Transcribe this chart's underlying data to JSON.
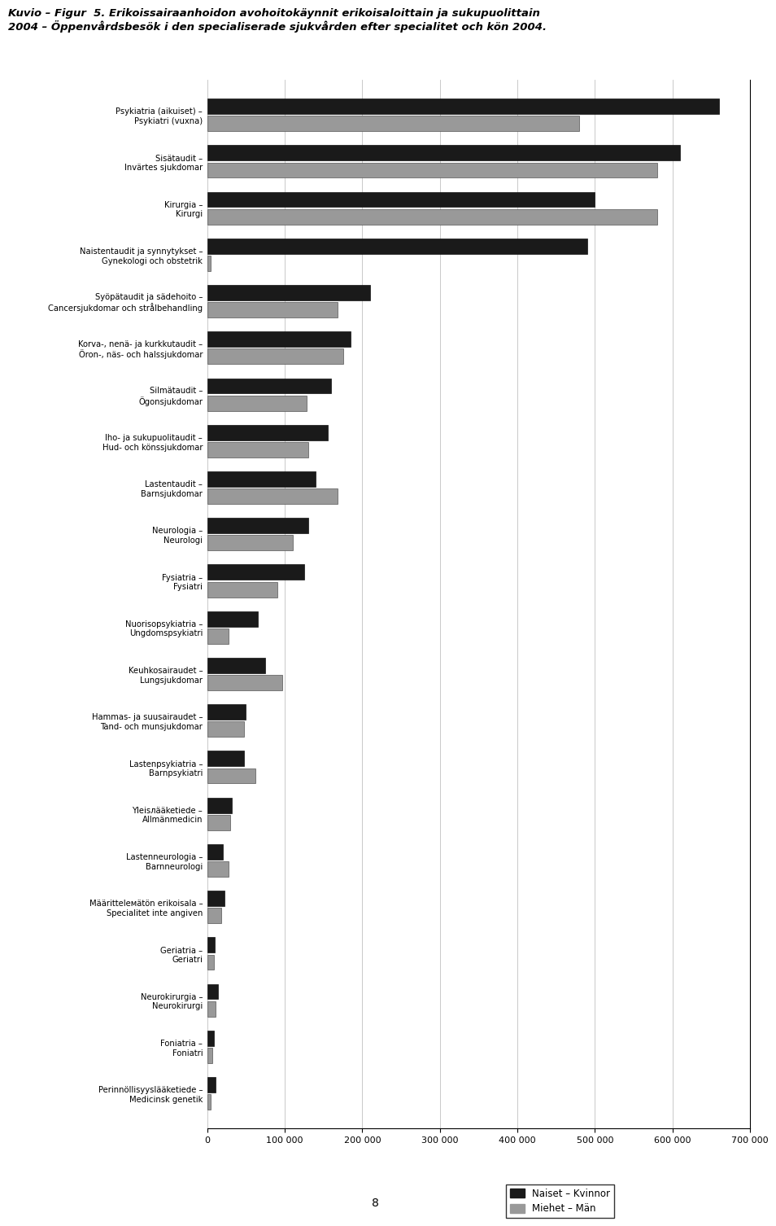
{
  "categories": [
    "Psykiatria (aikuiset) –\nPsykiatri (vuxna)",
    "Sisätaudit –\nInvärtes sjukdomar",
    "Kirurgia –\nKirurgi",
    "Naistentaudit ja synnytykset –\nGynekologi och obstetrik",
    "Syöpätaudit ja sädehoito –\nCancersjukdomar och strålbehandling",
    "Korva-, nenä- ja kurkkutaudit –\nÖron-, näs- och halssjukdomar",
    "Silmätaudit –\nÖgonsjukdomar",
    "Iho- ja sukupuolitaudit –\nHud- och könssjukdomar",
    "Lastentaudit –\nBarnsjukdomar",
    "Neurologia –\nNeurologi",
    "Fysiatria –\nFysiatri",
    "Nuorisopsykiatria –\nUngdomspsykiatri",
    "Keuhkosairaudet –\nLungsjukdomar",
    "Hammas- ja suusairaudet –\nTand- och munsjukdomar",
    "Lastenpsykiatria –\nBarnpsykiatri",
    "Yleisлääketiede –\nAllmänmedicin",
    "Lastenneurologia –\nBarnneurologi",
    "Määrittelемätön erikoisala –\nSpecialitet inte angiven",
    "Geriatria –\nGeriatri",
    "Neurokirurgia –\nNeurokirurgi",
    "Foniatria –\nFoniatri",
    "Perinnöllisyyslääketiede –\nMedicinsk genetik"
  ],
  "naiset": [
    660000,
    610000,
    500000,
    490000,
    210000,
    185000,
    160000,
    155000,
    140000,
    130000,
    125000,
    65000,
    75000,
    50000,
    47000,
    32000,
    20000,
    22000,
    10000,
    14000,
    9000,
    11000
  ],
  "miehet": [
    480000,
    580000,
    580000,
    4000,
    168000,
    175000,
    128000,
    130000,
    168000,
    110000,
    90000,
    28000,
    97000,
    47000,
    62000,
    30000,
    28000,
    18000,
    9000,
    11000,
    7000,
    4000
  ],
  "color_naiset": "#1a1a1a",
  "color_miehet": "#999999",
  "xlim": [
    0,
    700000
  ],
  "xtick_labels": [
    "0",
    "100 000",
    "200 000",
    "300 000",
    "400 000",
    "500 000",
    "600 000",
    "700 000"
  ],
  "legend_naiset": "Naiset – Kvinnor",
  "legend_miehet": "Miehet – Män",
  "title": "Kuvio – Figur  5. Erikoissairaanhoidon avohoitokäynnit erikoisaloittain ja sukupuolittain\n2004 – Öppenvårdsbesök i den specialiserade sjukvården efter specialitet och kön 2004.",
  "page_number": "8"
}
